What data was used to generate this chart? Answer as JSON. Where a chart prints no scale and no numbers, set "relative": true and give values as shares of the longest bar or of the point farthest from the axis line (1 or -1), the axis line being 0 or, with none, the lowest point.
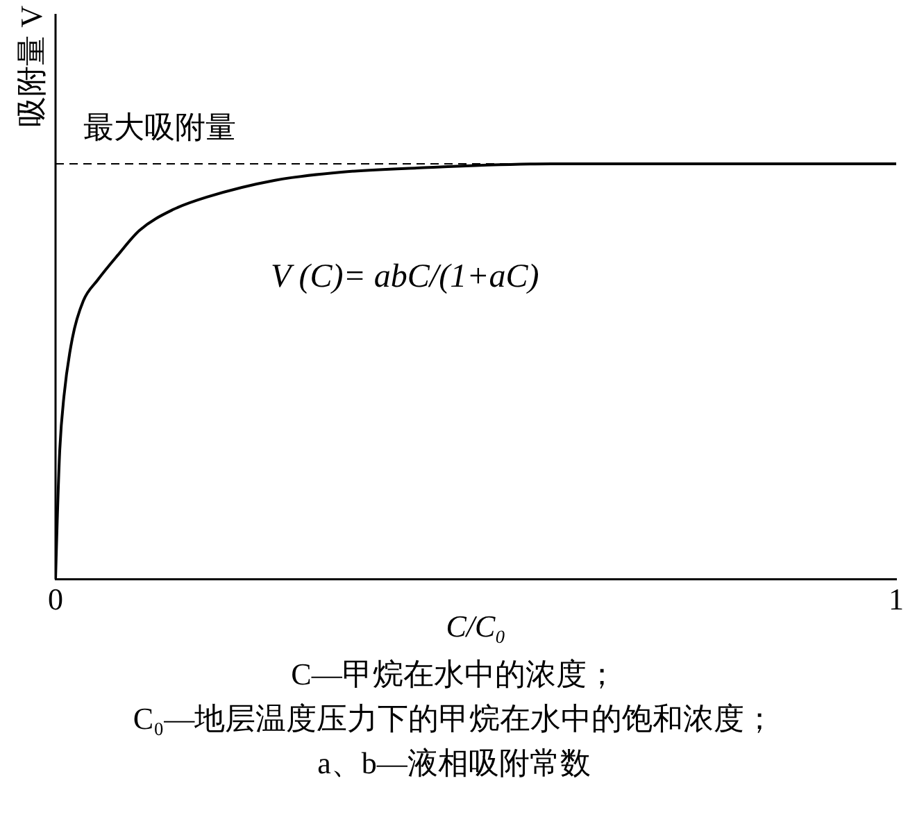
{
  "chart_data": {
    "type": "line",
    "relative": true,
    "xlabel": "C/C₀",
    "ylabel": "吸附量 V",
    "xlim": [
      0,
      1
    ],
    "xticks": [
      0,
      1
    ],
    "grid": false,
    "legend": false,
    "marker": "none",
    "line_style": "solid",
    "series": [
      {
        "color": "#000000",
        "x": [
          0,
          0.002,
          0.005,
          0.01,
          0.02,
          0.033,
          0.05,
          0.074,
          0.1,
          0.14,
          0.18,
          0.26,
          0.34,
          0.43,
          0.59,
          1
        ],
        "values": [
          0,
          0.14,
          0.31,
          0.44,
          0.58,
          0.67,
          0.72,
          0.78,
          0.84,
          0.89,
          0.92,
          0.96,
          0.98,
          0.99,
          1,
          1
        ]
      }
    ],
    "ref_lines": [
      {
        "axis": "y",
        "value": 1,
        "label": "最大吸附量",
        "line_style": "dashed"
      }
    ],
    "annotations": [
      "V (C)= abC/(1+aC)",
      "C—甲烷在水中的浓度；",
      "C₀—地层温度压力下的甲烷在水中的饱和浓度；",
      "a、b—液相吸附常数"
    ]
  }
}
